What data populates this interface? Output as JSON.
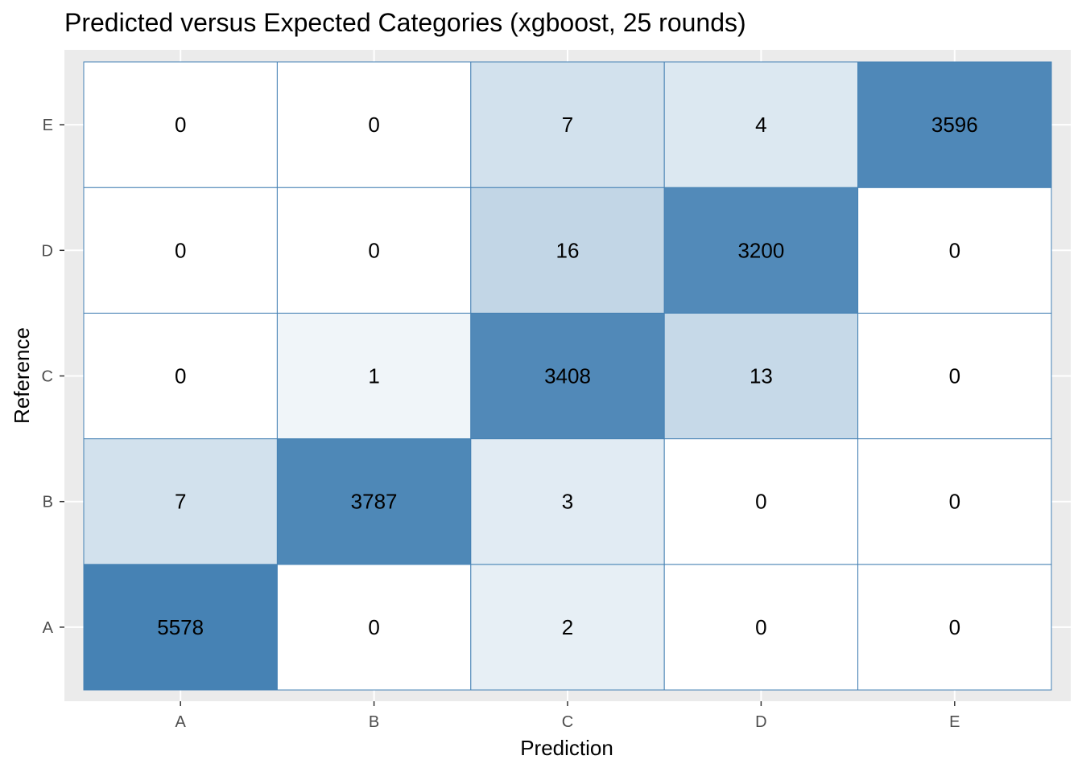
{
  "chart_data": {
    "type": "heatmap",
    "title": "Predicted versus Expected Categories (xgboost, 25 rounds)",
    "xlabel": "Prediction",
    "ylabel": "Reference",
    "x_categories": [
      "A",
      "B",
      "C",
      "D",
      "E"
    ],
    "y_categories": [
      "A",
      "B",
      "C",
      "D",
      "E"
    ],
    "matrix_rows_by_reference": {
      "A": [
        5578,
        0,
        2,
        0,
        0
      ],
      "B": [
        7,
        3787,
        3,
        0,
        0
      ],
      "C": [
        0,
        1,
        3408,
        13,
        0
      ],
      "D": [
        0,
        0,
        16,
        3200,
        0
      ],
      "E": [
        0,
        0,
        7,
        4,
        3596
      ]
    },
    "fill_low": "#ffffff",
    "fill_high": "#4682b4",
    "cell_border": "#4682b4",
    "grid": true
  }
}
